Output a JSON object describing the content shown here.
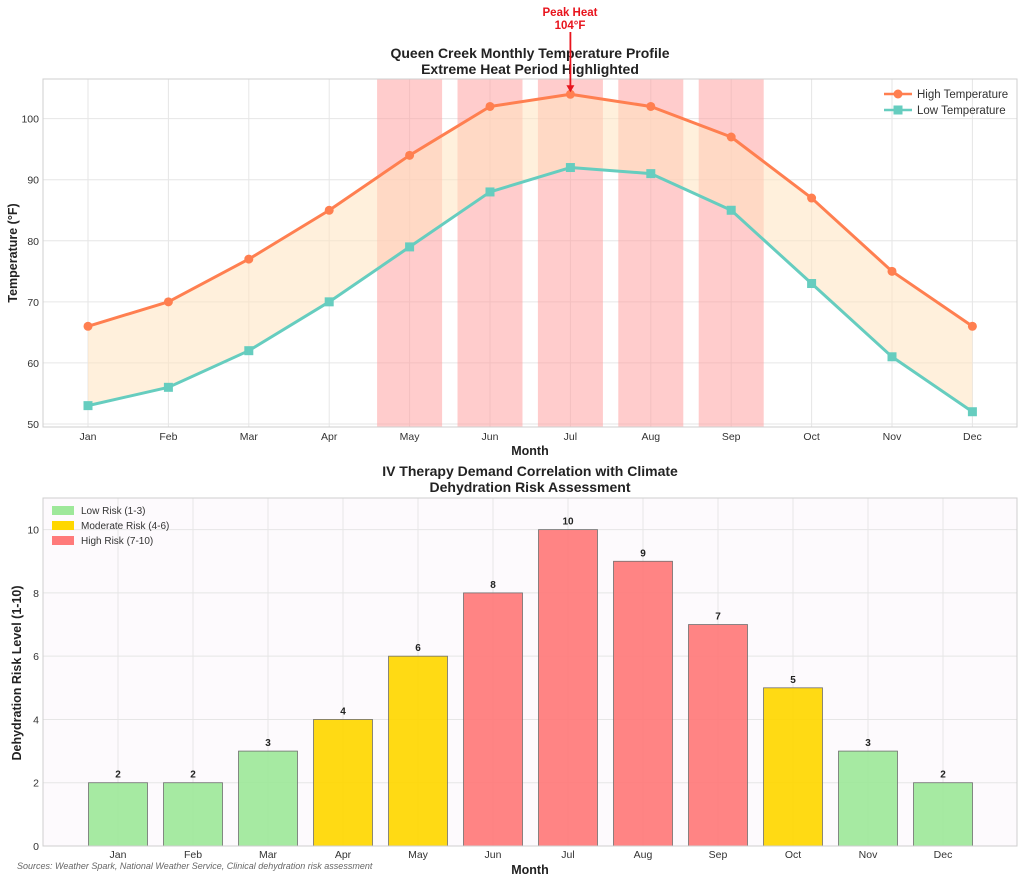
{
  "source_note": "Sources: Weather Spark, National Weather Service, Clinical dehydration risk assessment",
  "chart_data": [
    {
      "type": "line",
      "title": "Queen Creek Monthly Temperature Profile",
      "subtitle": "Extreme Heat Period Highlighted",
      "xlabel": "Month",
      "ylabel": "Temperature (°F)",
      "categories": [
        "Jan",
        "Feb",
        "Mar",
        "Apr",
        "May",
        "Jun",
        "Jul",
        "Aug",
        "Sep",
        "Oct",
        "Nov",
        "Dec"
      ],
      "ylim": [
        49.5,
        106.5
      ],
      "yticks": [
        50,
        60,
        70,
        80,
        90,
        100
      ],
      "series": [
        {
          "name": "High Temperature",
          "values": [
            66,
            70,
            77,
            85,
            94,
            102,
            104,
            102,
            97,
            87,
            75,
            66
          ],
          "color": "#ff7f50",
          "marker": "circle"
        },
        {
          "name": "Low Temperature",
          "values": [
            53,
            56,
            62,
            70,
            79,
            88,
            92,
            91,
            85,
            73,
            61,
            52
          ],
          "color": "#66cdbf",
          "marker": "square"
        }
      ],
      "fill_between": {
        "color": "#ffe4bf"
      },
      "highlight_months": [
        "May",
        "Jun",
        "Jul",
        "Aug",
        "Sep"
      ],
      "highlight_color": "#ff9a9a",
      "annotation": {
        "line1": "Peak Heat",
        "line2": "104°F",
        "month": "Jul",
        "value": 104,
        "color": "#e8141d"
      },
      "legend_position": "top-right",
      "grid": true
    },
    {
      "type": "bar",
      "title": "IV Therapy Demand Correlation with Climate",
      "subtitle": "Dehydration Risk Assessment",
      "xlabel": "Month",
      "ylabel": "Dehydration Risk Level (1-10)",
      "categories": [
        "Jan",
        "Feb",
        "Mar",
        "Apr",
        "May",
        "Jun",
        "Jul",
        "Aug",
        "Sep",
        "Oct",
        "Nov",
        "Dec"
      ],
      "values": [
        2,
        2,
        3,
        4,
        6,
        8,
        10,
        9,
        7,
        5,
        3,
        2
      ],
      "ylim": [
        0,
        11
      ],
      "yticks": [
        0,
        2,
        4,
        6,
        8,
        10
      ],
      "risk_colors": {
        "low": "#9ee89a",
        "moderate": "#ffd700",
        "high": "#ff7a7a"
      },
      "legend": [
        {
          "label": "Low Risk (1-3)",
          "color": "#9ee89a"
        },
        {
          "label": "Moderate Risk (4-6)",
          "color": "#ffd700"
        },
        {
          "label": "High Risk (7-10)",
          "color": "#ff7a7a"
        }
      ],
      "legend_position": "top-left",
      "grid": true
    }
  ]
}
